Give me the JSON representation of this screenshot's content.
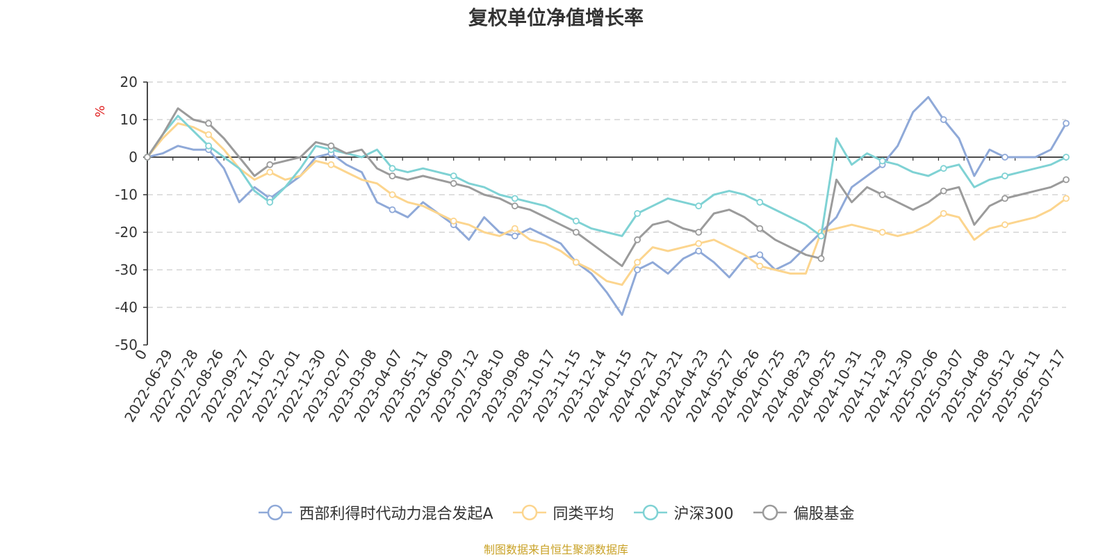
{
  "title": "复权单位净值增长率",
  "source_note": "制图数据来自恒生聚源数据库",
  "chart_data": {
    "type": "line",
    "ylabel": "%",
    "ylim": [
      -50,
      20
    ],
    "yticks": [
      20,
      10,
      0,
      -10,
      -20,
      -30,
      -40,
      -50
    ],
    "grid": true,
    "legend_position": "bottom",
    "x_tick_labels": [
      "0",
      "2022-06-29",
      "2022-07-28",
      "2022-08-26",
      "2022-09-27",
      "2022-11-02",
      "2022-12-01",
      "2022-12-30",
      "2023-02-07",
      "2023-03-08",
      "2023-04-07",
      "2023-05-11",
      "2023-06-09",
      "2023-07-12",
      "2023-08-10",
      "2023-09-08",
      "2023-10-17",
      "2023-11-15",
      "2023-12-14",
      "2024-01-15",
      "2024-02-21",
      "2024-03-21",
      "2024-04-23",
      "2024-05-27",
      "2024-06-26",
      "2024-07-25",
      "2024-08-23",
      "2024-09-25",
      "2024-10-31",
      "2024-11-29",
      "2024-12-30",
      "2025-02-06",
      "2025-03-07",
      "2025-04-08",
      "2025-05-12",
      "2025-06-11",
      "2025-07-17"
    ],
    "series": [
      {
        "name": "西部利得时代动力混合发起A",
        "color": "#8fa9d8",
        "values": [
          0,
          1,
          3,
          2,
          2,
          -3,
          -12,
          -8,
          -11,
          -8,
          -5,
          0,
          1,
          -2,
          -4,
          -12,
          -14,
          -16,
          -12,
          -15,
          -18,
          -22,
          -16,
          -20,
          -21,
          -19,
          -21,
          -23,
          -28,
          -31,
          -36,
          -42,
          -30,
          -28,
          -31,
          -27,
          -25,
          -28,
          -32,
          -27,
          -26,
          -30,
          -28,
          -24,
          -20,
          -16,
          -8,
          -5,
          -2,
          3,
          12,
          16,
          10,
          5,
          -5,
          2,
          0,
          0,
          0,
          2,
          9
        ]
      },
      {
        "name": "同类平均",
        "color": "#fcd58e",
        "values": [
          0,
          5,
          9,
          8,
          6,
          2,
          -3,
          -6,
          -4,
          -6,
          -5,
          -1,
          -2,
          -4,
          -6,
          -7,
          -10,
          -12,
          -13,
          -15,
          -17,
          -18,
          -20,
          -21,
          -19,
          -22,
          -23,
          -25,
          -28,
          -30,
          -33,
          -34,
          -28,
          -24,
          -25,
          -24,
          -23,
          -22,
          -24,
          -26,
          -29,
          -30,
          -31,
          -31,
          -20,
          -19,
          -18,
          -19,
          -20,
          -21,
          -20,
          -18,
          -15,
          -16,
          -22,
          -19,
          -18,
          -17,
          -16,
          -14,
          -11
        ]
      },
      {
        "name": "沪深300",
        "color": "#7fd2d4",
        "values": [
          0,
          6,
          11,
          7,
          3,
          0,
          -3,
          -9,
          -12,
          -8,
          -3,
          3,
          2,
          1,
          0,
          2,
          -3,
          -4,
          -3,
          -4,
          -5,
          -7,
          -8,
          -10,
          -11,
          -12,
          -13,
          -15,
          -17,
          -19,
          -20,
          -21,
          -15,
          -13,
          -11,
          -12,
          -13,
          -10,
          -9,
          -10,
          -12,
          -14,
          -16,
          -18,
          -21,
          5,
          -2,
          1,
          -1,
          -2,
          -4,
          -5,
          -3,
          -2,
          -8,
          -6,
          -5,
          -4,
          -3,
          -2,
          0
        ]
      },
      {
        "name": "偏股基金",
        "color": "#9b9b9b",
        "values": [
          0,
          6,
          13,
          10,
          9,
          5,
          0,
          -5,
          -2,
          -1,
          0,
          4,
          3,
          1,
          2,
          -3,
          -5,
          -6,
          -5,
          -6,
          -7,
          -8,
          -10,
          -11,
          -13,
          -14,
          -16,
          -18,
          -20,
          -23,
          -26,
          -29,
          -22,
          -18,
          -17,
          -19,
          -20,
          -15,
          -14,
          -16,
          -19,
          -22,
          -24,
          -26,
          -27,
          -6,
          -12,
          -8,
          -10,
          -12,
          -14,
          -12,
          -9,
          -8,
          -18,
          -13,
          -11,
          -10,
          -9,
          -8,
          -6
        ]
      }
    ]
  },
  "legend": [
    {
      "label": "西部利得时代动力混合发起A",
      "color": "#8fa9d8"
    },
    {
      "label": "同类平均",
      "color": "#fcd58e"
    },
    {
      "label": "沪深300",
      "color": "#7fd2d4"
    },
    {
      "label": "偏股基金",
      "color": "#9b9b9b"
    }
  ]
}
